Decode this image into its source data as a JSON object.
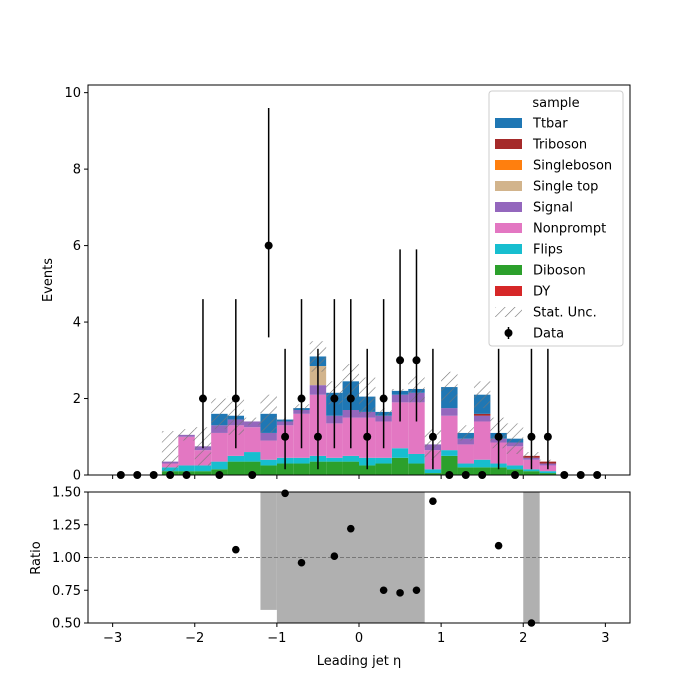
{
  "chart_data": [
    {
      "type": "bar",
      "stacked": true,
      "xlabel_main": "",
      "ylabel": "Events",
      "xlim": [
        -3.3,
        3.3
      ],
      "ylim": [
        0,
        10.2
      ],
      "yticks": [
        0,
        2,
        4,
        6,
        8,
        10
      ],
      "yticklabels": [
        "0",
        "2",
        "4",
        "6",
        "8",
        "10"
      ],
      "legend": {
        "title": "sample",
        "placement": "top-right",
        "entries": [
          {
            "label": "Ttbar",
            "color": "#1f77b4",
            "kind": "patch"
          },
          {
            "label": "Triboson",
            "color": "#a52a2a",
            "kind": "patch"
          },
          {
            "label": "Singleboson",
            "color": "#ff7f0e",
            "kind": "patch"
          },
          {
            "label": "Single top",
            "color": "#d2b48c",
            "kind": "patch"
          },
          {
            "label": "Signal",
            "color": "#9467bd",
            "kind": "patch"
          },
          {
            "label": "Nonprompt",
            "color": "#e377c2",
            "kind": "patch"
          },
          {
            "label": "Flips",
            "color": "#17becf",
            "kind": "patch"
          },
          {
            "label": "Diboson",
            "color": "#2ca02c",
            "kind": "patch"
          },
          {
            "label": "DY",
            "color": "#d62728",
            "kind": "patch"
          },
          {
            "label": "Stat. Unc.",
            "color": "#888888",
            "kind": "hatch"
          },
          {
            "label": "Data",
            "color": "#000000",
            "kind": "marker"
          }
        ]
      },
      "bin_edges": [
        -2.4,
        -2.2,
        -2.0,
        -1.8,
        -1.6,
        -1.4,
        -1.2,
        -1.0,
        -0.8,
        -0.6,
        -0.4,
        -0.2,
        0.0,
        0.2,
        0.4,
        0.6,
        0.8,
        1.0,
        1.2,
        1.4,
        1.6,
        1.8,
        2.0,
        2.2,
        2.4
      ],
      "stack_order": [
        "DY",
        "Diboson",
        "Flips",
        "Nonprompt",
        "Signal",
        "Single top",
        "Singleboson",
        "Triboson",
        "Ttbar"
      ],
      "series": [
        {
          "name": "DY",
          "color": "#d62728",
          "values": [
            0,
            0,
            0,
            0,
            0,
            0,
            0,
            0,
            0,
            0,
            0,
            0,
            0,
            0,
            0,
            0,
            0,
            0,
            0,
            0,
            0,
            0,
            0,
            0
          ]
        },
        {
          "name": "Diboson",
          "color": "#2ca02c",
          "values": [
            0.1,
            0.1,
            0.1,
            0.15,
            0.35,
            0.35,
            0.25,
            0.3,
            0.3,
            0.35,
            0.35,
            0.35,
            0.25,
            0.3,
            0.45,
            0.3,
            0.05,
            0.5,
            0.2,
            0.2,
            0.2,
            0.15,
            0.1,
            0.05
          ]
        },
        {
          "name": "Flips",
          "color": "#17becf",
          "values": [
            0.1,
            0.15,
            0.15,
            0.2,
            0.15,
            0.25,
            0.15,
            0.15,
            0.15,
            0.15,
            0.1,
            0.15,
            0.2,
            0.15,
            0.25,
            0.25,
            0.1,
            0.15,
            0.1,
            0.2,
            0.1,
            0.1,
            0.05,
            0.05
          ]
        },
        {
          "name": "Nonprompt",
          "color": "#e377c2",
          "values": [
            0.1,
            0.75,
            0.4,
            0.75,
            0.8,
            0.65,
            0.5,
            0.85,
            1.15,
            1.6,
            0.9,
            1.0,
            1.05,
            0.95,
            1.2,
            1.35,
            0.5,
            0.9,
            0.5,
            1.0,
            0.55,
            0.5,
            0.25,
            0.15
          ]
        },
        {
          "name": "Signal",
          "color": "#9467bd",
          "values": [
            0.05,
            0.05,
            0.1,
            0.2,
            0.15,
            0.15,
            0.2,
            0.1,
            0.1,
            0.25,
            0.2,
            0.2,
            0.15,
            0.15,
            0.2,
            0.25,
            0.15,
            0.2,
            0.15,
            0.15,
            0.1,
            0.1,
            0.05,
            0.05
          ]
        },
        {
          "name": "Single top",
          "color": "#d2b48c",
          "values": [
            0,
            0,
            0,
            0,
            0,
            0,
            0,
            0,
            0,
            0.5,
            0,
            0,
            0,
            0,
            0,
            0,
            0,
            0,
            0,
            0,
            0,
            0,
            0,
            0
          ]
        },
        {
          "name": "Singleboson",
          "color": "#ff7f0e",
          "values": [
            0,
            0,
            0,
            0,
            0,
            0,
            0,
            0,
            0,
            0,
            0,
            0,
            0,
            0,
            0,
            0,
            0,
            0,
            0,
            0,
            0,
            0,
            0,
            0
          ]
        },
        {
          "name": "Triboson",
          "color": "#a52a2a",
          "values": [
            0,
            0,
            0,
            0,
            0,
            0,
            0,
            0,
            0,
            0,
            0,
            0,
            0,
            0,
            0,
            0,
            0,
            0,
            0,
            0.05,
            0,
            0,
            0.05,
            0.05
          ]
        },
        {
          "name": "Ttbar",
          "color": "#1f77b4",
          "values": [
            0,
            0,
            0,
            0.3,
            0.1,
            0,
            0.5,
            0.05,
            0.05,
            0.25,
            0.6,
            0.75,
            0.4,
            0.1,
            0.1,
            0.1,
            0,
            0.55,
            0.15,
            0.5,
            0.15,
            0.1,
            0,
            0
          ]
        }
      ],
      "stat_unc": [
        0.8,
        0.15,
        0.5,
        0.4,
        0.5,
        0.1,
        0.5,
        0.05,
        0.1,
        0.4,
        0.3,
        0.45,
        0.5,
        0.1,
        0.05,
        0.35,
        0.4,
        0.4,
        0.2,
        0.35,
        0.4,
        0.4,
        0.1,
        0.05
      ],
      "data_points": {
        "x": [
          -2.9,
          -2.7,
          -2.5,
          -2.3,
          -2.1,
          -1.9,
          -1.7,
          -1.5,
          -1.3,
          -1.1,
          -0.9,
          -0.7,
          -0.5,
          -0.3,
          -0.1,
          0.1,
          0.3,
          0.5,
          0.7,
          0.9,
          1.1,
          1.3,
          1.5,
          1.7,
          1.9,
          2.1,
          2.3,
          2.5,
          2.7,
          2.9
        ],
        "y": [
          0,
          0,
          0,
          0,
          0,
          2,
          0,
          2,
          0,
          6,
          1,
          2,
          1,
          2,
          2,
          1,
          2,
          3,
          3,
          1,
          0,
          0,
          0,
          1,
          0,
          1,
          1,
          0,
          0,
          0
        ],
        "yerr_low": [
          0,
          0,
          0,
          0,
          0,
          1.3,
          0,
          1.3,
          0,
          2.4,
          0.85,
          1.3,
          0.85,
          1.3,
          1.3,
          0.85,
          1.3,
          1.6,
          1.6,
          0.85,
          0,
          0,
          0,
          0.85,
          0,
          0.85,
          0.85,
          0,
          0,
          0
        ],
        "yerr_high": [
          0,
          0,
          0,
          0,
          0,
          2.6,
          0,
          2.6,
          0,
          3.6,
          2.3,
          2.6,
          2.3,
          2.6,
          2.6,
          2.3,
          2.6,
          2.9,
          2.9,
          2.3,
          0,
          0,
          0,
          2.3,
          0,
          2.3,
          2.3,
          0,
          0,
          0
        ]
      }
    },
    {
      "type": "scatter",
      "xlabel": "Leading jet  η",
      "ylabel": "Ratio",
      "xlim": [
        -3.3,
        3.3
      ],
      "ylim": [
        0.5,
        1.5
      ],
      "xticks": [
        -3,
        -2,
        -1,
        0,
        1,
        2,
        3
      ],
      "xticklabels": [
        "−3",
        "−2",
        "−1",
        "0",
        "1",
        "2",
        "3"
      ],
      "yticks": [
        0.5,
        0.75,
        1.0,
        1.25,
        1.5
      ],
      "yticklabels": [
        "0.50",
        "0.75",
        "1.00",
        "1.25",
        "1.50"
      ],
      "reference_line": 1.0,
      "band_color": "#b0b0b0",
      "unc_band": [
        {
          "x0": -1.2,
          "x1": -1.0,
          "lo": 0.6,
          "hi": 1.5
        },
        {
          "x0": -1.0,
          "x1": 0.8,
          "lo": 0.5,
          "hi": 1.5
        },
        {
          "x0": 2.0,
          "x1": 2.2,
          "lo": 0.5,
          "hi": 1.5
        }
      ],
      "points": {
        "x": [
          -1.5,
          -0.9,
          -0.7,
          -0.3,
          -0.1,
          0.3,
          0.5,
          0.7,
          0.9,
          1.7,
          2.1
        ],
        "y": [
          1.06,
          1.49,
          0.96,
          1.01,
          1.22,
          0.75,
          0.73,
          0.75,
          1.43,
          1.09,
          0.5
        ]
      }
    }
  ]
}
